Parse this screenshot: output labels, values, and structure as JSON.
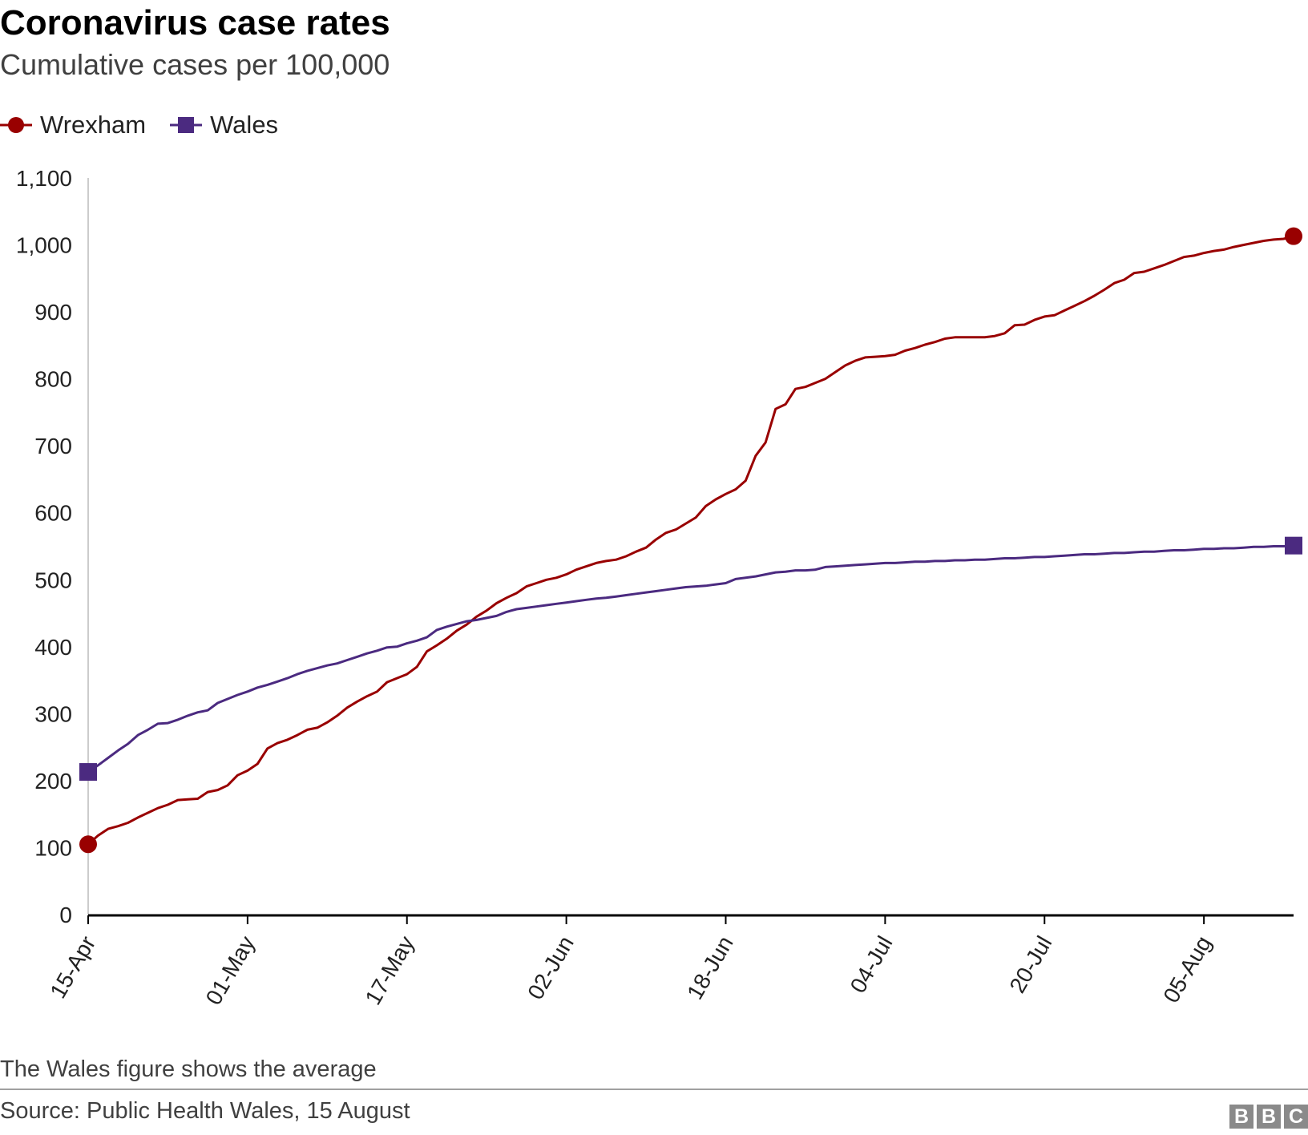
{
  "header": {
    "title": "Coronavirus case rates",
    "subtitle": "Cumulative cases per 100,000"
  },
  "legend": {
    "items": [
      {
        "label": "Wrexham",
        "color": "#990000",
        "marker": "circle"
      },
      {
        "label": "Wales",
        "color": "#4b2a80",
        "marker": "square"
      }
    ]
  },
  "footer": {
    "note": "The Wales figure shows the average",
    "source": "Source: Public Health Wales, 15 August",
    "logo_letters": [
      "B",
      "B",
      "C"
    ]
  },
  "chart_data": {
    "type": "line",
    "title": "Coronavirus case rates",
    "subtitle": "Cumulative cases per 100,000",
    "xlabel": "",
    "ylabel": "",
    "ylim": [
      0,
      1100
    ],
    "yticks": [
      0,
      100,
      200,
      300,
      400,
      500,
      600,
      700,
      800,
      900,
      1000,
      1100
    ],
    "ytick_labels": [
      "0",
      "100",
      "200",
      "300",
      "400",
      "500",
      "600",
      "700",
      "800",
      "900",
      "1,000",
      "1,100"
    ],
    "x_range_days": [
      0,
      116
    ],
    "xticks": [
      {
        "day": 0,
        "label": "15-Apr"
      },
      {
        "day": 16,
        "label": "01-May"
      },
      {
        "day": 32,
        "label": "17-May"
      },
      {
        "day": 48,
        "label": "02-Jun"
      },
      {
        "day": 64,
        "label": "18-Jun"
      },
      {
        "day": 80,
        "label": "04-Jul"
      },
      {
        "day": 96,
        "label": "20-Jul"
      },
      {
        "day": 112,
        "label": "05-Aug"
      }
    ],
    "grid": false,
    "legend_position": "top-left",
    "series": [
      {
        "name": "Wrexham",
        "color": "#990000",
        "marker": "circle",
        "points": [
          [
            0,
            105
          ],
          [
            1,
            118
          ],
          [
            2,
            128
          ],
          [
            3,
            132
          ],
          [
            4,
            137
          ],
          [
            5,
            145
          ],
          [
            6,
            152
          ],
          [
            7,
            159
          ],
          [
            8,
            164
          ],
          [
            9,
            171
          ],
          [
            10,
            172
          ],
          [
            11,
            173
          ],
          [
            12,
            183
          ],
          [
            13,
            186
          ],
          [
            14,
            193
          ],
          [
            15,
            208
          ],
          [
            16,
            215
          ],
          [
            17,
            225
          ],
          [
            18,
            248
          ],
          [
            19,
            256
          ],
          [
            20,
            261
          ],
          [
            21,
            268
          ],
          [
            22,
            276
          ],
          [
            23,
            279
          ],
          [
            24,
            287
          ],
          [
            25,
            297
          ],
          [
            26,
            309
          ],
          [
            27,
            318
          ],
          [
            28,
            326
          ],
          [
            29,
            333
          ],
          [
            30,
            347
          ],
          [
            31,
            353
          ],
          [
            32,
            359
          ],
          [
            33,
            370
          ],
          [
            34,
            393
          ],
          [
            35,
            402
          ],
          [
            36,
            412
          ],
          [
            37,
            424
          ],
          [
            38,
            433
          ],
          [
            39,
            445
          ],
          [
            40,
            454
          ],
          [
            41,
            465
          ],
          [
            42,
            473
          ],
          [
            43,
            480
          ],
          [
            44,
            490
          ],
          [
            45,
            495
          ],
          [
            46,
            500
          ],
          [
            47,
            503
          ],
          [
            48,
            508
          ],
          [
            49,
            515
          ],
          [
            50,
            520
          ],
          [
            51,
            525
          ],
          [
            52,
            528
          ],
          [
            53,
            530
          ],
          [
            54,
            535
          ],
          [
            55,
            542
          ],
          [
            56,
            548
          ],
          [
            57,
            560
          ],
          [
            58,
            570
          ],
          [
            59,
            575
          ],
          [
            60,
            584
          ],
          [
            61,
            593
          ],
          [
            62,
            610
          ],
          [
            63,
            620
          ],
          [
            64,
            628
          ],
          [
            65,
            635
          ],
          [
            66,
            648
          ],
          [
            67,
            685
          ],
          [
            68,
            705
          ],
          [
            69,
            755
          ],
          [
            70,
            762
          ],
          [
            71,
            785
          ],
          [
            72,
            788
          ],
          [
            73,
            794
          ],
          [
            74,
            800
          ],
          [
            75,
            810
          ],
          [
            76,
            820
          ],
          [
            77,
            827
          ],
          [
            78,
            832
          ],
          [
            79,
            833
          ],
          [
            80,
            834
          ],
          [
            81,
            836
          ],
          [
            82,
            842
          ],
          [
            83,
            846
          ],
          [
            84,
            851
          ],
          [
            85,
            855
          ],
          [
            86,
            860
          ],
          [
            87,
            862
          ],
          [
            88,
            862
          ],
          [
            89,
            862
          ],
          [
            90,
            862
          ],
          [
            91,
            864
          ],
          [
            92,
            868
          ],
          [
            93,
            880
          ],
          [
            94,
            881
          ],
          [
            95,
            888
          ],
          [
            96,
            893
          ],
          [
            97,
            895
          ],
          [
            98,
            902
          ],
          [
            99,
            909
          ],
          [
            100,
            916
          ],
          [
            101,
            924
          ],
          [
            102,
            933
          ],
          [
            103,
            943
          ],
          [
            104,
            948
          ],
          [
            105,
            958
          ],
          [
            106,
            960
          ],
          [
            107,
            965
          ],
          [
            108,
            970
          ],
          [
            109,
            976
          ],
          [
            110,
            982
          ],
          [
            111,
            984
          ],
          [
            112,
            988
          ],
          [
            113,
            991
          ],
          [
            114,
            993
          ],
          [
            115,
            997
          ],
          [
            116,
            1000
          ],
          [
            117,
            1003
          ],
          [
            118,
            1006
          ],
          [
            119,
            1008
          ],
          [
            120,
            1009
          ],
          [
            121,
            1013
          ]
        ]
      },
      {
        "name": "Wales",
        "color": "#4b2a80",
        "marker": "square",
        "points": [
          [
            0,
            213
          ],
          [
            1,
            223
          ],
          [
            2,
            234
          ],
          [
            3,
            245
          ],
          [
            4,
            255
          ],
          [
            5,
            268
          ],
          [
            6,
            276
          ],
          [
            7,
            285
          ],
          [
            8,
            286
          ],
          [
            9,
            291
          ],
          [
            10,
            297
          ],
          [
            11,
            302
          ],
          [
            12,
            305
          ],
          [
            13,
            316
          ],
          [
            14,
            322
          ],
          [
            15,
            328
          ],
          [
            16,
            333
          ],
          [
            17,
            339
          ],
          [
            18,
            343
          ],
          [
            19,
            348
          ],
          [
            20,
            353
          ],
          [
            21,
            359
          ],
          [
            22,
            364
          ],
          [
            23,
            368
          ],
          [
            24,
            372
          ],
          [
            25,
            375
          ],
          [
            26,
            380
          ],
          [
            27,
            385
          ],
          [
            28,
            390
          ],
          [
            29,
            394
          ],
          [
            30,
            399
          ],
          [
            31,
            400
          ],
          [
            32,
            405
          ],
          [
            33,
            409
          ],
          [
            34,
            414
          ],
          [
            35,
            425
          ],
          [
            36,
            430
          ],
          [
            37,
            434
          ],
          [
            38,
            438
          ],
          [
            39,
            440
          ],
          [
            40,
            443
          ],
          [
            41,
            446
          ],
          [
            42,
            452
          ],
          [
            43,
            456
          ],
          [
            44,
            458
          ],
          [
            45,
            460
          ],
          [
            46,
            462
          ],
          [
            47,
            464
          ],
          [
            48,
            466
          ],
          [
            49,
            468
          ],
          [
            50,
            470
          ],
          [
            51,
            472
          ],
          [
            52,
            473
          ],
          [
            53,
            475
          ],
          [
            54,
            477
          ],
          [
            55,
            479
          ],
          [
            56,
            481
          ],
          [
            57,
            483
          ],
          [
            58,
            485
          ],
          [
            59,
            487
          ],
          [
            60,
            489
          ],
          [
            61,
            490
          ],
          [
            62,
            491
          ],
          [
            63,
            493
          ],
          [
            64,
            495
          ],
          [
            65,
            501
          ],
          [
            66,
            503
          ],
          [
            67,
            505
          ],
          [
            68,
            508
          ],
          [
            69,
            511
          ],
          [
            70,
            512
          ],
          [
            71,
            514
          ],
          [
            72,
            514
          ],
          [
            73,
            515
          ],
          [
            74,
            519
          ],
          [
            75,
            520
          ],
          [
            76,
            521
          ],
          [
            77,
            522
          ],
          [
            78,
            523
          ],
          [
            79,
            524
          ],
          [
            80,
            525
          ],
          [
            81,
            525
          ],
          [
            82,
            526
          ],
          [
            83,
            527
          ],
          [
            84,
            527
          ],
          [
            85,
            528
          ],
          [
            86,
            528
          ],
          [
            87,
            529
          ],
          [
            88,
            529
          ],
          [
            89,
            530
          ],
          [
            90,
            530
          ],
          [
            91,
            531
          ],
          [
            92,
            532
          ],
          [
            93,
            532
          ],
          [
            94,
            533
          ],
          [
            95,
            534
          ],
          [
            96,
            534
          ],
          [
            97,
            535
          ],
          [
            98,
            536
          ],
          [
            99,
            537
          ],
          [
            100,
            538
          ],
          [
            101,
            538
          ],
          [
            102,
            539
          ],
          [
            103,
            540
          ],
          [
            104,
            540
          ],
          [
            105,
            541
          ],
          [
            106,
            542
          ],
          [
            107,
            542
          ],
          [
            108,
            543
          ],
          [
            109,
            544
          ],
          [
            110,
            544
          ],
          [
            111,
            545
          ],
          [
            112,
            546
          ],
          [
            113,
            546
          ],
          [
            114,
            547
          ],
          [
            115,
            547
          ],
          [
            116,
            548
          ],
          [
            117,
            549
          ],
          [
            118,
            549
          ],
          [
            119,
            550
          ],
          [
            120,
            550
          ],
          [
            121,
            551
          ]
        ]
      }
    ]
  }
}
